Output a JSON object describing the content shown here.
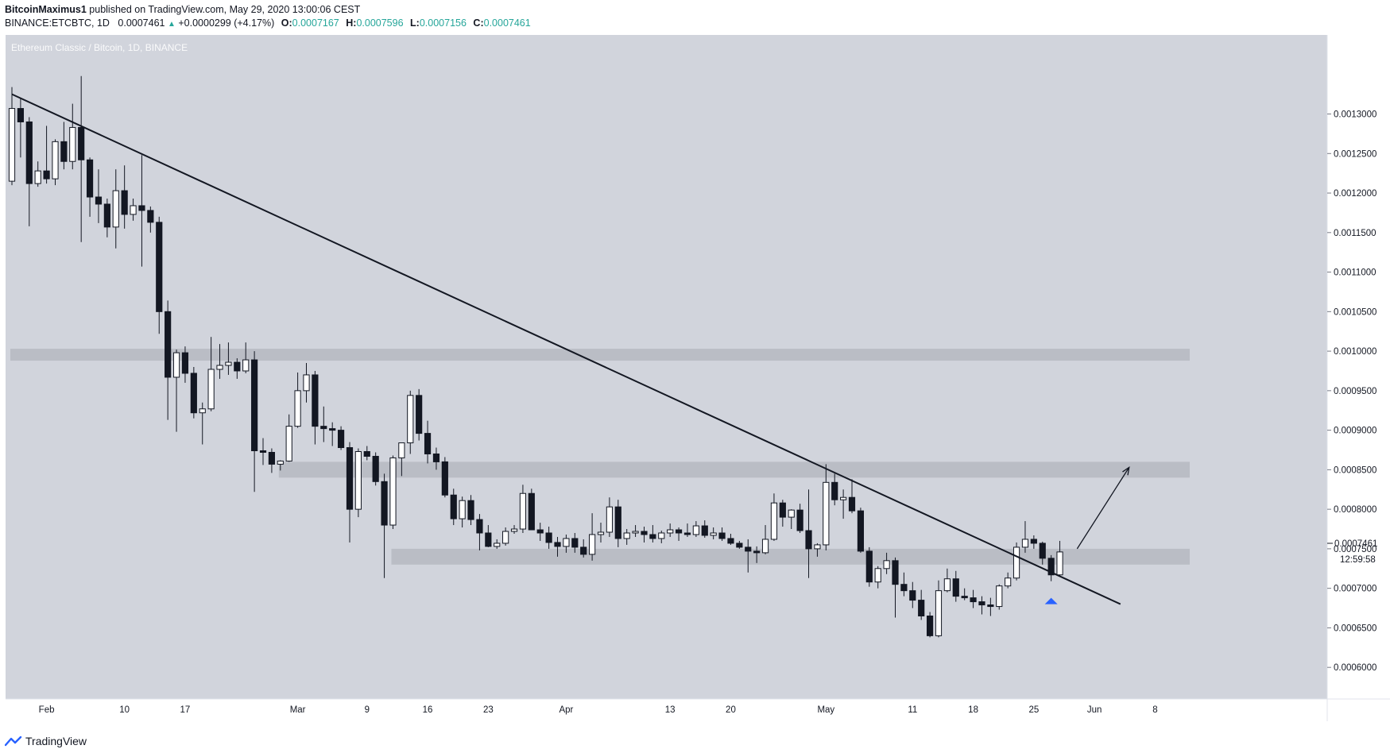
{
  "header": {
    "publisher": "BitcoinMaximus1",
    "published_text": "published on TradingView.com, May 29, 2020 13:00:06 CEST",
    "symbol": "BINANCE:ETCBTC, 1D",
    "last": "0.0007461",
    "change": "+0.0000299 (+4.17%)",
    "o_label": "O:",
    "o_value": "0.0007167",
    "h_label": "H:",
    "h_value": "0.0007596",
    "l_label": "L:",
    "l_value": "0.0007156",
    "c_label": "C:",
    "c_value": "0.0007461"
  },
  "watermark": "Ethereum Classic / Bitcoin, 1D, BINANCE",
  "price_badge": {
    "value": "0.0007461",
    "countdown": "12:59:58"
  },
  "footer": {
    "brand": "TradingView",
    "logo_icon": "tradingview-cloud-icon"
  },
  "colors": {
    "plot_bg": "#d1d4dc",
    "zone": "#b6b9c1",
    "candle_up": "#ffffff",
    "candle_down": "#131722",
    "marker": "#2962ff"
  },
  "chart_data": {
    "type": "candlestick",
    "title": "Ethereum Classic / Bitcoin, 1D, BINANCE",
    "x_range": [
      "2020-01-28",
      "2020-06-12"
    ],
    "ylim": [
      0.00056,
      0.0014
    ],
    "y_ticks": [
      "0.0006000",
      "0.0006500",
      "0.0007000",
      "0.0007500",
      "0.0008000",
      "0.0008500",
      "0.0009000",
      "0.0009500",
      "0.0010000",
      "0.0010500",
      "0.0011000",
      "0.0011500",
      "0.0012000",
      "0.0012500",
      "0.0013000"
    ],
    "x_ticks": [
      {
        "label": "Feb",
        "date": "2020-02-01"
      },
      {
        "label": "10",
        "date": "2020-02-10"
      },
      {
        "label": "17",
        "date": "2020-02-17"
      },
      {
        "label": "Mar",
        "date": "2020-03-01"
      },
      {
        "label": "9",
        "date": "2020-03-09"
      },
      {
        "label": "16",
        "date": "2020-03-16"
      },
      {
        "label": "23",
        "date": "2020-03-23"
      },
      {
        "label": "Apr",
        "date": "2020-04-01"
      },
      {
        "label": "13",
        "date": "2020-04-13"
      },
      {
        "label": "20",
        "date": "2020-04-20"
      },
      {
        "label": "May",
        "date": "2020-05-01"
      },
      {
        "label": "11",
        "date": "2020-05-11"
      },
      {
        "label": "18",
        "date": "2020-05-18"
      },
      {
        "label": "25",
        "date": "2020-05-25"
      },
      {
        "label": "Jun",
        "date": "2020-06-01"
      },
      {
        "label": "8",
        "date": "2020-06-08"
      }
    ],
    "start_date": "2020-01-28",
    "candles": [
      {
        "o": 0.001215,
        "h": 0.001334,
        "l": 0.00121,
        "c": 0.001307
      },
      {
        "o": 0.001307,
        "h": 0.00132,
        "l": 0.001245,
        "c": 0.00129
      },
      {
        "o": 0.00129,
        "h": 0.001296,
        "l": 0.001158,
        "c": 0.001212
      },
      {
        "o": 0.001212,
        "h": 0.00124,
        "l": 0.001208,
        "c": 0.001228
      },
      {
        "o": 0.001228,
        "h": 0.001285,
        "l": 0.001212,
        "c": 0.001218
      },
      {
        "o": 0.001218,
        "h": 0.001268,
        "l": 0.00121,
        "c": 0.001265
      },
      {
        "o": 0.001265,
        "h": 0.00129,
        "l": 0.00123,
        "c": 0.00124
      },
      {
        "o": 0.00124,
        "h": 0.001313,
        "l": 0.00123,
        "c": 0.001283
      },
      {
        "o": 0.001283,
        "h": 0.001348,
        "l": 0.001138,
        "c": 0.001242
      },
      {
        "o": 0.001242,
        "h": 0.001245,
        "l": 0.00117,
        "c": 0.001195
      },
      {
        "o": 0.001195,
        "h": 0.00123,
        "l": 0.001162,
        "c": 0.001186
      },
      {
        "o": 0.001186,
        "h": 0.001193,
        "l": 0.001144,
        "c": 0.001157
      },
      {
        "o": 0.001157,
        "h": 0.00123,
        "l": 0.00113,
        "c": 0.001203
      },
      {
        "o": 0.001203,
        "h": 0.001235,
        "l": 0.001155,
        "c": 0.001173
      },
      {
        "o": 0.001173,
        "h": 0.001193,
        "l": 0.001165,
        "c": 0.001184
      },
      {
        "o": 0.001184,
        "h": 0.001248,
        "l": 0.001107,
        "c": 0.001178
      },
      {
        "o": 0.001178,
        "h": 0.001183,
        "l": 0.00115,
        "c": 0.001163
      },
      {
        "o": 0.001163,
        "h": 0.00117,
        "l": 0.001022,
        "c": 0.00105
      },
      {
        "o": 0.00105,
        "h": 0.001064,
        "l": 0.000913,
        "c": 0.000967
      },
      {
        "o": 0.000967,
        "h": 0.001002,
        "l": 0.000898,
        "c": 0.000998
      },
      {
        "o": 0.000998,
        "h": 0.001006,
        "l": 0.00096,
        "c": 0.000972
      },
      {
        "o": 0.000972,
        "h": 0.00098,
        "l": 0.000915,
        "c": 0.000922
      },
      {
        "o": 0.000922,
        "h": 0.000935,
        "l": 0.000882,
        "c": 0.000927
      },
      {
        "o": 0.000927,
        "h": 0.001018,
        "l": 0.000924,
        "c": 0.000977
      },
      {
        "o": 0.000977,
        "h": 0.001009,
        "l": 0.000965,
        "c": 0.000982
      },
      {
        "o": 0.000982,
        "h": 0.001011,
        "l": 0.00097,
        "c": 0.000986
      },
      {
        "o": 0.000986,
        "h": 0.000991,
        "l": 0.000965,
        "c": 0.000975
      },
      {
        "o": 0.000975,
        "h": 0.001011,
        "l": 0.000972,
        "c": 0.000989
      },
      {
        "o": 0.000989,
        "h": 0.001,
        "l": 0.000822,
        "c": 0.000874
      },
      {
        "o": 0.000874,
        "h": 0.00089,
        "l": 0.000856,
        "c": 0.000872
      },
      {
        "o": 0.000872,
        "h": 0.000877,
        "l": 0.000846,
        "c": 0.000857
      },
      {
        "o": 0.000857,
        "h": 0.000862,
        "l": 0.000849,
        "c": 0.000861
      },
      {
        "o": 0.000861,
        "h": 0.00092,
        "l": 0.00086,
        "c": 0.000905
      },
      {
        "o": 0.000905,
        "h": 0.000973,
        "l": 0.000903,
        "c": 0.00095
      },
      {
        "o": 0.00095,
        "h": 0.000985,
        "l": 0.000935,
        "c": 0.00097
      },
      {
        "o": 0.00097,
        "h": 0.000975,
        "l": 0.000882,
        "c": 0.000905
      },
      {
        "o": 0.000905,
        "h": 0.00093,
        "l": 0.000885,
        "c": 0.000902
      },
      {
        "o": 0.000902,
        "h": 0.00091,
        "l": 0.00088,
        "c": 0.0009
      },
      {
        "o": 0.0009,
        "h": 0.000905,
        "l": 0.000875,
        "c": 0.000878
      },
      {
        "o": 0.000878,
        "h": 0.000885,
        "l": 0.000758,
        "c": 0.0008
      },
      {
        "o": 0.0008,
        "h": 0.000877,
        "l": 0.00079,
        "c": 0.000873
      },
      {
        "o": 0.000873,
        "h": 0.00088,
        "l": 0.000862,
        "c": 0.000867
      },
      {
        "o": 0.000867,
        "h": 0.000872,
        "l": 0.00083,
        "c": 0.000835
      },
      {
        "o": 0.000835,
        "h": 0.000845,
        "l": 0.000713,
        "c": 0.00078
      },
      {
        "o": 0.00078,
        "h": 0.000868,
        "l": 0.000775,
        "c": 0.000865
      },
      {
        "o": 0.000865,
        "h": 0.000883,
        "l": 0.000842,
        "c": 0.000884
      },
      {
        "o": 0.000884,
        "h": 0.00095,
        "l": 0.00087,
        "c": 0.000944
      },
      {
        "o": 0.000944,
        "h": 0.000952,
        "l": 0.000887,
        "c": 0.000896
      },
      {
        "o": 0.000896,
        "h": 0.000912,
        "l": 0.000858,
        "c": 0.00087
      },
      {
        "o": 0.00087,
        "h": 0.000878,
        "l": 0.00085,
        "c": 0.00086
      },
      {
        "o": 0.00086,
        "h": 0.000866,
        "l": 0.000815,
        "c": 0.000818
      },
      {
        "o": 0.000818,
        "h": 0.000826,
        "l": 0.00078,
        "c": 0.000788
      },
      {
        "o": 0.000788,
        "h": 0.000816,
        "l": 0.000777,
        "c": 0.000811
      },
      {
        "o": 0.000811,
        "h": 0.000818,
        "l": 0.00078,
        "c": 0.000787
      },
      {
        "o": 0.000787,
        "h": 0.000794,
        "l": 0.000748,
        "c": 0.00077
      },
      {
        "o": 0.00077,
        "h": 0.00078,
        "l": 0.000752,
        "c": 0.000753
      },
      {
        "o": 0.000753,
        "h": 0.000762,
        "l": 0.00075,
        "c": 0.000757
      },
      {
        "o": 0.000757,
        "h": 0.000777,
        "l": 0.000754,
        "c": 0.000772
      },
      {
        "o": 0.000772,
        "h": 0.00078,
        "l": 0.000769,
        "c": 0.000775
      },
      {
        "o": 0.000775,
        "h": 0.000831,
        "l": 0.00077,
        "c": 0.00082
      },
      {
        "o": 0.00082,
        "h": 0.000826,
        "l": 0.00078,
        "c": 0.000774
      },
      {
        "o": 0.000774,
        "h": 0.000783,
        "l": 0.00076,
        "c": 0.00077
      },
      {
        "o": 0.00077,
        "h": 0.000778,
        "l": 0.00075,
        "c": 0.000758
      },
      {
        "o": 0.000758,
        "h": 0.000765,
        "l": 0.00074,
        "c": 0.000753
      },
      {
        "o": 0.000753,
        "h": 0.000768,
        "l": 0.000745,
        "c": 0.000763
      },
      {
        "o": 0.000763,
        "h": 0.00077,
        "l": 0.000745,
        "c": 0.000752
      },
      {
        "o": 0.000752,
        "h": 0.000762,
        "l": 0.000739,
        "c": 0.000743
      },
      {
        "o": 0.000743,
        "h": 0.000795,
        "l": 0.000735,
        "c": 0.000768
      },
      {
        "o": 0.000768,
        "h": 0.000783,
        "l": 0.000758,
        "c": 0.000771
      },
      {
        "o": 0.000771,
        "h": 0.000815,
        "l": 0.000765,
        "c": 0.000803
      },
      {
        "o": 0.000803,
        "h": 0.000812,
        "l": 0.000752,
        "c": 0.000763
      },
      {
        "o": 0.000763,
        "h": 0.000775,
        "l": 0.000755,
        "c": 0.00077
      },
      {
        "o": 0.00077,
        "h": 0.00078,
        "l": 0.000765,
        "c": 0.000772
      },
      {
        "o": 0.000772,
        "h": 0.000778,
        "l": 0.000758,
        "c": 0.000768
      },
      {
        "o": 0.000768,
        "h": 0.00078,
        "l": 0.000758,
        "c": 0.000763
      },
      {
        "o": 0.000763,
        "h": 0.000773,
        "l": 0.000757,
        "c": 0.00077
      },
      {
        "o": 0.00077,
        "h": 0.000782,
        "l": 0.000765,
        "c": 0.000774
      },
      {
        "o": 0.000774,
        "h": 0.000777,
        "l": 0.00076,
        "c": 0.00077
      },
      {
        "o": 0.00077,
        "h": 0.000782,
        "l": 0.000765,
        "c": 0.000768
      },
      {
        "o": 0.000768,
        "h": 0.000785,
        "l": 0.000765,
        "c": 0.000779
      },
      {
        "o": 0.000779,
        "h": 0.000786,
        "l": 0.000764,
        "c": 0.000767
      },
      {
        "o": 0.000767,
        "h": 0.000777,
        "l": 0.000762,
        "c": 0.00077
      },
      {
        "o": 0.00077,
        "h": 0.000777,
        "l": 0.00076,
        "c": 0.000763
      },
      {
        "o": 0.000763,
        "h": 0.000769,
        "l": 0.000755,
        "c": 0.000757
      },
      {
        "o": 0.000757,
        "h": 0.00076,
        "l": 0.00075,
        "c": 0.000752
      },
      {
        "o": 0.000752,
        "h": 0.000762,
        "l": 0.00072,
        "c": 0.000747
      },
      {
        "o": 0.000747,
        "h": 0.000753,
        "l": 0.000732,
        "c": 0.000745
      },
      {
        "o": 0.000745,
        "h": 0.00078,
        "l": 0.000743,
        "c": 0.000762
      },
      {
        "o": 0.000762,
        "h": 0.00082,
        "l": 0.00076,
        "c": 0.000808
      },
      {
        "o": 0.000808,
        "h": 0.000812,
        "l": 0.000778,
        "c": 0.00079
      },
      {
        "o": 0.00079,
        "h": 0.0008,
        "l": 0.000775,
        "c": 0.000799
      },
      {
        "o": 0.000799,
        "h": 0.000807,
        "l": 0.00077,
        "c": 0.000773
      },
      {
        "o": 0.000773,
        "h": 0.000825,
        "l": 0.000713,
        "c": 0.00075
      },
      {
        "o": 0.00075,
        "h": 0.000757,
        "l": 0.00074,
        "c": 0.000755
      },
      {
        "o": 0.000755,
        "h": 0.000857,
        "l": 0.000748,
        "c": 0.000834
      },
      {
        "o": 0.000834,
        "h": 0.000845,
        "l": 0.000805,
        "c": 0.000812
      },
      {
        "o": 0.000812,
        "h": 0.000825,
        "l": 0.000788,
        "c": 0.000815
      },
      {
        "o": 0.000815,
        "h": 0.000838,
        "l": 0.000795,
        "c": 0.000798
      },
      {
        "o": 0.000798,
        "h": 0.000802,
        "l": 0.000745,
        "c": 0.000747
      },
      {
        "o": 0.000747,
        "h": 0.000752,
        "l": 0.000702,
        "c": 0.000708
      },
      {
        "o": 0.000708,
        "h": 0.000728,
        "l": 0.0007,
        "c": 0.000725
      },
      {
        "o": 0.000725,
        "h": 0.000745,
        "l": 0.000718,
        "c": 0.000735
      },
      {
        "o": 0.000735,
        "h": 0.000739,
        "l": 0.000663,
        "c": 0.000705
      },
      {
        "o": 0.000705,
        "h": 0.00072,
        "l": 0.00069,
        "c": 0.000697
      },
      {
        "o": 0.000697,
        "h": 0.000708,
        "l": 0.000675,
        "c": 0.000685
      },
      {
        "o": 0.000685,
        "h": 0.000698,
        "l": 0.00066,
        "c": 0.000665
      },
      {
        "o": 0.000665,
        "h": 0.00067,
        "l": 0.000638,
        "c": 0.00064
      },
      {
        "o": 0.00064,
        "h": 0.00071,
        "l": 0.000638,
        "c": 0.000697
      },
      {
        "o": 0.000697,
        "h": 0.000725,
        "l": 0.000695,
        "c": 0.000712
      },
      {
        "o": 0.000712,
        "h": 0.000722,
        "l": 0.000683,
        "c": 0.00069
      },
      {
        "o": 0.00069,
        "h": 0.0007,
        "l": 0.000685,
        "c": 0.000688
      },
      {
        "o": 0.000688,
        "h": 0.000698,
        "l": 0.000675,
        "c": 0.000683
      },
      {
        "o": 0.000683,
        "h": 0.00069,
        "l": 0.000667,
        "c": 0.000679
      },
      {
        "o": 0.000679,
        "h": 0.000688,
        "l": 0.000665,
        "c": 0.000677
      },
      {
        "o": 0.000677,
        "h": 0.000705,
        "l": 0.000673,
        "c": 0.000703
      },
      {
        "o": 0.000703,
        "h": 0.00072,
        "l": 0.0007,
        "c": 0.000713
      },
      {
        "o": 0.000713,
        "h": 0.000758,
        "l": 0.00071,
        "c": 0.000752
      },
      {
        "o": 0.000752,
        "h": 0.000785,
        "l": 0.000745,
        "c": 0.000762
      },
      {
        "o": 0.000762,
        "h": 0.000767,
        "l": 0.00075,
        "c": 0.000757
      },
      {
        "o": 0.000757,
        "h": 0.000759,
        "l": 0.00073,
        "c": 0.000738
      },
      {
        "o": 0.000738,
        "h": 0.000742,
        "l": 0.000709,
        "c": 0.000717
      },
      {
        "o": 0.000717,
        "h": 0.00076,
        "l": 0.000716,
        "c": 0.000746
      }
    ],
    "zones": [
      {
        "from": "2020-01-28",
        "to": "2020-06-12",
        "low": 0.000988,
        "high": 0.001003
      },
      {
        "from": "2020-02-28",
        "to": "2020-06-12",
        "low": 0.00084,
        "high": 0.00086
      },
      {
        "from": "2020-03-12",
        "to": "2020-06-12",
        "low": 0.00073,
        "high": 0.00075
      }
    ],
    "trendline": [
      {
        "date": "2020-01-28",
        "value": 0.001325
      },
      {
        "date": "2020-06-04",
        "value": 0.00068
      }
    ],
    "projection_arrow": [
      {
        "date": "2020-05-30",
        "value": 0.00075
      },
      {
        "date": "2020-06-05",
        "value": 0.000853
      }
    ],
    "signal_marker": {
      "date": "2020-05-27",
      "value": 0.000688
    }
  }
}
